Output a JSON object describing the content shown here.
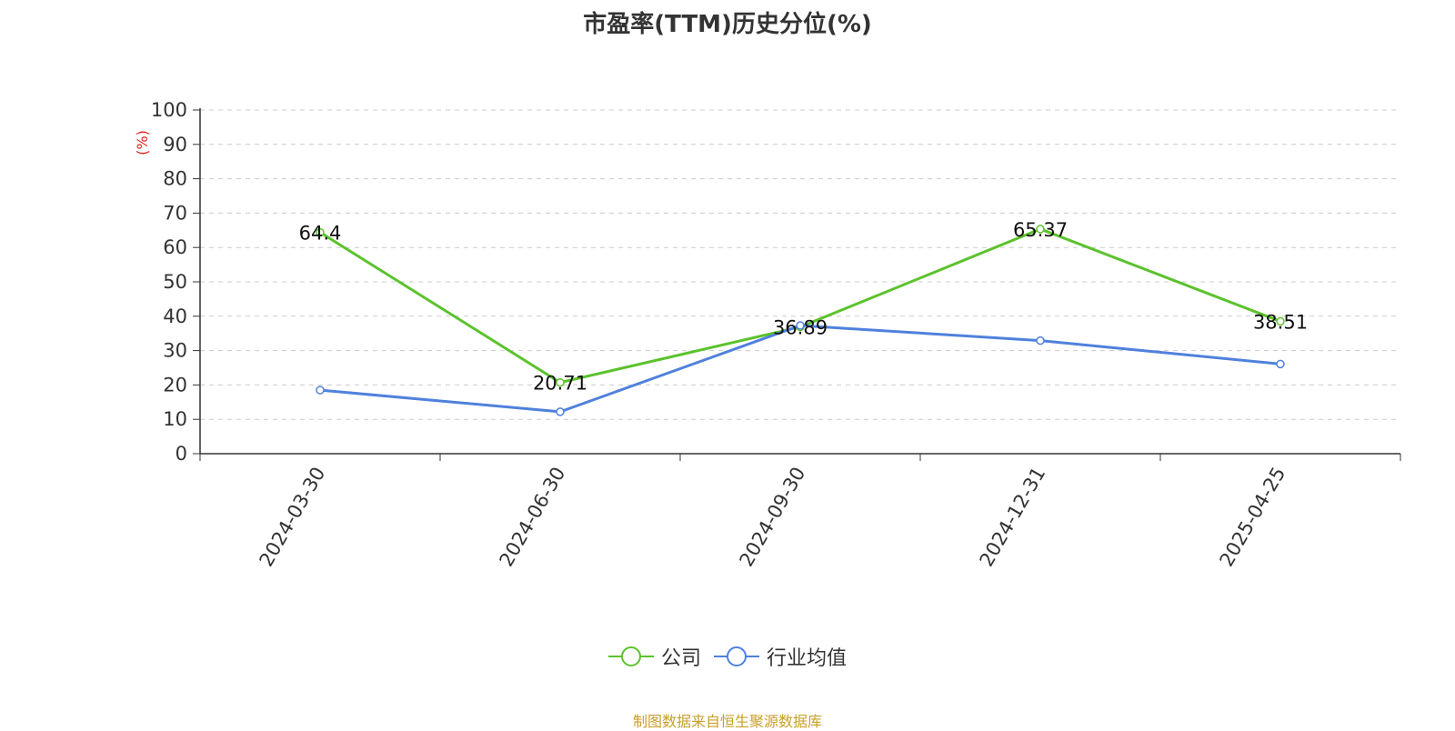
{
  "chart_data": {
    "type": "line",
    "title": "市盈率(TTM)历史分位(%)",
    "ylabel": "(%)",
    "xlabel": "",
    "categories": [
      "2024-03-30",
      "2024-06-30",
      "2024-09-30",
      "2024-12-31",
      "2025-04-25"
    ],
    "ylim": [
      0,
      100
    ],
    "yticks": [
      0,
      10,
      20,
      30,
      40,
      50,
      60,
      70,
      80,
      90,
      100
    ],
    "grid": true,
    "legend_position": "bottom",
    "series": [
      {
        "name": "公司",
        "color": "#5cc22d",
        "values": [
          64.4,
          20.71,
          36.89,
          65.37,
          38.51
        ],
        "show_labels": true
      },
      {
        "name": "行业均值",
        "color": "#4f81dd",
        "values": [
          18.5,
          12.2,
          37.3,
          32.9,
          26.1
        ],
        "show_labels": false
      }
    ]
  },
  "colors": {
    "ylabel": "#e02020",
    "source": "#c8a02a"
  },
  "source": "制图数据来自恒生聚源数据库"
}
